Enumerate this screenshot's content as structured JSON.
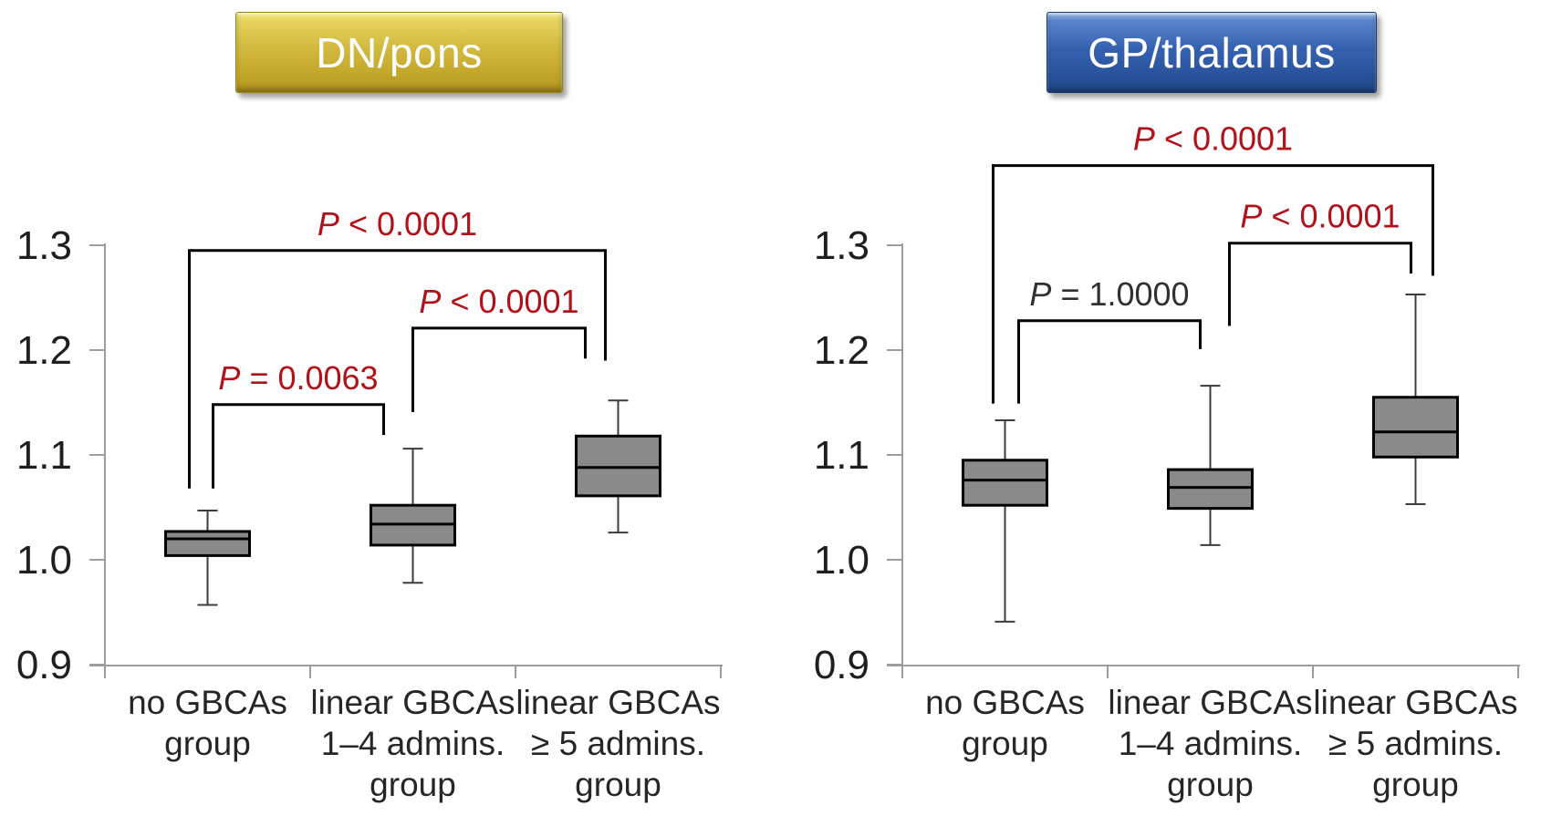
{
  "figure": {
    "background": "#ffffff"
  },
  "colors": {
    "p_value_red": "#b1121a",
    "p_value_black": "#303030",
    "axis_line": "#9d9d9d",
    "tick_label": "#1f1f1f",
    "category_label": "#262626",
    "box_fill": "#8a8a8a",
    "box_stroke": "#000000",
    "median_stroke": "#000000",
    "whisker": "#3c3c3c",
    "bracket": "#000000",
    "banner_text": "#ffffff"
  },
  "chart_data": [
    {
      "type": "boxplot",
      "title": "DN/pons",
      "banner": {
        "theme": "gold",
        "gradient": [
          "#f6ec86",
          "#e6d35e",
          "#d2b93e",
          "#c4a82c",
          "#b1931a"
        ],
        "border": "#9a8312"
      },
      "ylim": [
        0.9,
        1.3
      ],
      "yticks": [
        1.3,
        1.2,
        1.1,
        1.0,
        0.9
      ],
      "ytick_labels": [
        "1.3",
        "1.2",
        "1.1",
        "1.0",
        "0.9"
      ],
      "grid": false,
      "legend": null,
      "categories": [
        [
          "no GBCAs",
          "group"
        ],
        [
          "linear GBCAs",
          "1–4 admins.",
          "group"
        ],
        [
          "linear GBCAs",
          "≥ 5 admins.",
          "group"
        ]
      ],
      "boxes": [
        {
          "whisker_low": 0.957,
          "q1": 1.004,
          "median": 1.02,
          "q3": 1.027,
          "whisker_high": 1.047
        },
        {
          "whisker_low": 0.978,
          "q1": 1.014,
          "median": 1.034,
          "q3": 1.052,
          "whisker_high": 1.106
        },
        {
          "whisker_low": 1.026,
          "q1": 1.061,
          "median": 1.088,
          "q3": 1.118,
          "whisker_high": 1.152
        }
      ],
      "comparisons": [
        {
          "between": [
            0,
            2
          ],
          "label": "P < 0.0001",
          "label_color": "red",
          "bar": 1.295,
          "left_end": 1.068,
          "right_end": 1.19,
          "left_dx": -20,
          "right_dx": -14
        },
        {
          "between": [
            1,
            2
          ],
          "label": "P < 0.0001",
          "label_color": "red",
          "bar": 1.221,
          "left_end": 1.141,
          "right_end": 1.192,
          "left_dx": 0,
          "right_dx": -36
        },
        {
          "between": [
            0,
            1
          ],
          "label": "P = 0.0063",
          "label_color": "red",
          "bar": 1.148,
          "left_end": 1.068,
          "right_end": 1.119,
          "left_dx": 6,
          "right_dx": -32
        }
      ]
    },
    {
      "type": "boxplot",
      "title": "GP/thalamus",
      "banner": {
        "theme": "blue",
        "gradient": [
          "#9cb8e4",
          "#5a84cc",
          "#3562b0",
          "#2a549e",
          "#1e4688"
        ],
        "border": "#16386e"
      },
      "ylim": [
        0.9,
        1.3
      ],
      "yticks": [
        1.3,
        1.2,
        1.1,
        1.0,
        0.9
      ],
      "ytick_labels": [
        "1.3",
        "1.2",
        "1.1",
        "1.0",
        "0.9"
      ],
      "grid": false,
      "legend": null,
      "categories": [
        [
          "no GBCAs",
          "group"
        ],
        [
          "linear GBCAs",
          "1–4 admins.",
          "group"
        ],
        [
          "linear GBCAs",
          "≥ 5 admins.",
          "group"
        ]
      ],
      "boxes": [
        {
          "whisker_low": 0.941,
          "q1": 1.052,
          "median": 1.076,
          "q3": 1.095,
          "whisker_high": 1.133
        },
        {
          "whisker_low": 1.014,
          "q1": 1.049,
          "median": 1.069,
          "q3": 1.086,
          "whisker_high": 1.166
        },
        {
          "whisker_low": 1.053,
          "q1": 1.098,
          "median": 1.122,
          "q3": 1.155,
          "whisker_high": 1.253
        }
      ],
      "comparisons": [
        {
          "between": [
            0,
            2
          ],
          "label": "P < 0.0001",
          "label_color": "red",
          "bar": 1.376,
          "left_end": 1.149,
          "right_end": 1.271,
          "left_dx": -13,
          "right_dx": 19
        },
        {
          "between": [
            1,
            2
          ],
          "label": "P < 0.0001",
          "label_color": "red",
          "bar": 1.302,
          "left_end": 1.223,
          "right_end": 1.273,
          "left_dx": 21,
          "right_dx": -5
        },
        {
          "between": [
            0,
            1
          ],
          "label": "P = 1.0000",
          "label_color": "black",
          "bar": 1.228,
          "left_end": 1.149,
          "right_end": 1.201,
          "left_dx": 15,
          "right_dx": -11
        }
      ]
    }
  ]
}
